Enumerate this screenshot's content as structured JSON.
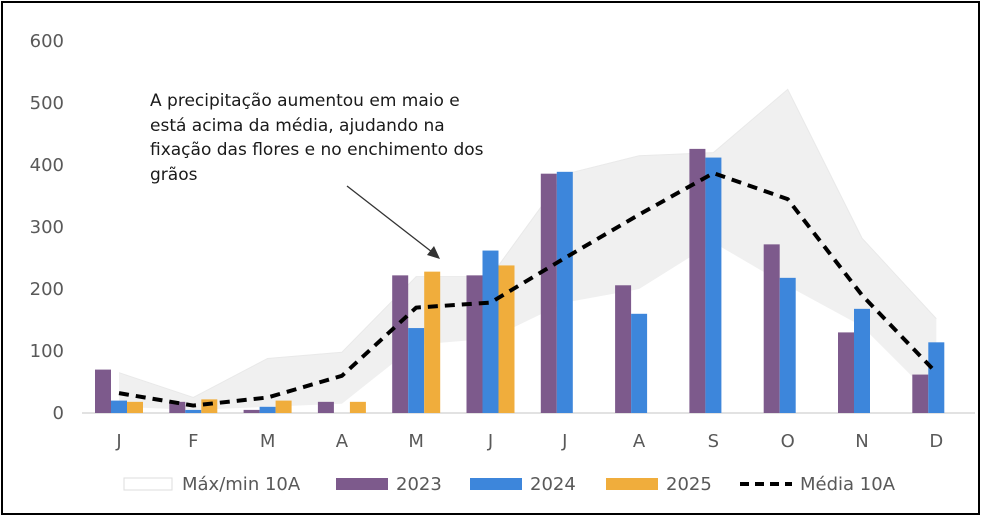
{
  "chart_data": {
    "type": "bar",
    "categories": [
      "J",
      "F",
      "M",
      "A",
      "M",
      "J",
      "J",
      "A",
      "S",
      "O",
      "N",
      "D"
    ],
    "ylim": [
      0,
      600
    ],
    "yticks": [
      0,
      100,
      200,
      300,
      400,
      500,
      600
    ],
    "grid": false,
    "legend_position": "bottom",
    "series": [
      {
        "name": "2023",
        "color": "#7d5a8c",
        "values": [
          70,
          18,
          5,
          18,
          222,
          222,
          386,
          206,
          426,
          272,
          130,
          62
        ]
      },
      {
        "name": "2024",
        "color": "#3d86db",
        "values": [
          20,
          5,
          10,
          null,
          137,
          262,
          389,
          160,
          412,
          218,
          168,
          114
        ]
      },
      {
        "name": "2025",
        "color": "#f0ad3c",
        "values": [
          18,
          22,
          20,
          18,
          228,
          238,
          null,
          null,
          null,
          null,
          null,
          null
        ]
      }
    ],
    "band": {
      "name": "Máx/min 10A",
      "color": "#f0f0f0",
      "max": [
        65,
        25,
        88,
        98,
        220,
        220,
        385,
        415,
        420,
        522,
        282,
        152
      ],
      "min": [
        10,
        5,
        10,
        15,
        110,
        120,
        178,
        200,
        275,
        205,
        140,
        20
      ]
    },
    "average": {
      "name": "Média 10A",
      "color": "#000000",
      "values": [
        32,
        12,
        25,
        60,
        170,
        178,
        250,
        320,
        387,
        345,
        190,
        65
      ]
    },
    "annotation": {
      "text": [
        "A precipitação aumentou em maio e",
        "está acima da média, ajudando na",
        "fixação das flores e no enchimento dos",
        "grãos"
      ]
    }
  }
}
